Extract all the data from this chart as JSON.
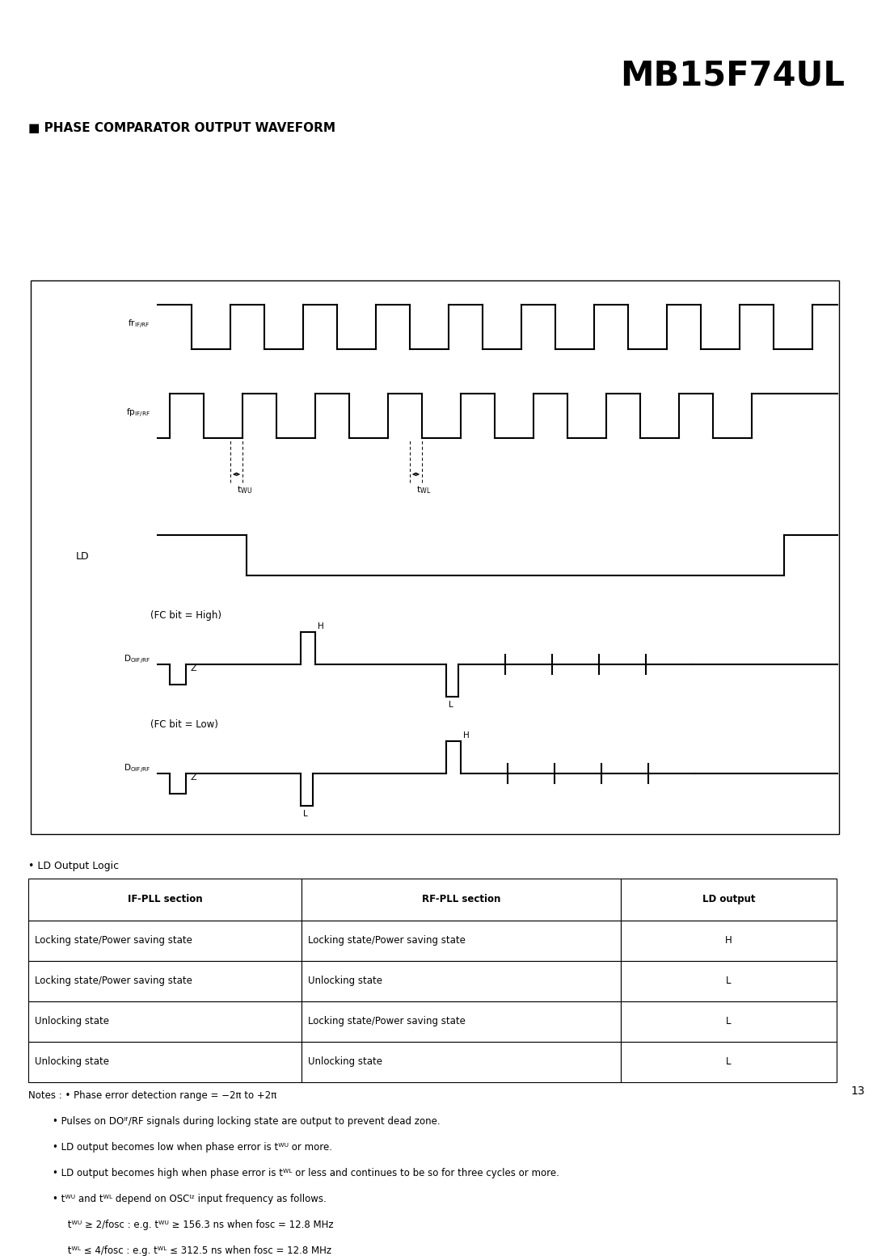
{
  "title": "MB15F74UL",
  "section_title": "■ PHASE COMPARATOR OUTPUT WAVEFORM",
  "green_color": "#25C466",
  "green_stripe": "#20B358",
  "bg_color": "#FFFFFF",
  "page_number": "13",
  "table_headers": [
    "IF-PLL section",
    "RF-PLL section",
    "LD output"
  ],
  "table_rows": [
    [
      "Locking state/Power saving state",
      "Locking state/Power saving state",
      "H"
    ],
    [
      "Locking state/Power saving state",
      "Unlocking state",
      "L"
    ],
    [
      "Unlocking state",
      "Locking state/Power saving state",
      "L"
    ],
    [
      "Unlocking state",
      "Unlocking state",
      "L"
    ]
  ],
  "note0": "Notes : • Phase error detection range = −2π to +2π",
  "note1": "        • Pulses on DOᴵᶠ/RF signals during locking state are output to prevent dead zone.",
  "note2": "        • LD output becomes low when phase error is tᵂᵁ or more.",
  "note3": "        • LD output becomes high when phase error is tᵂᴸ or less and continues to be so for three cycles or more.",
  "note4": "        • tᵂᵁ and tᵂᴸ depend on OSCᴵᶻ input frequency as follows.",
  "note5": "             tᵂᵁ ≥ 2/fosc : e.g. tᵂᵁ ≥ 156.3 ns when fosc = 12.8 MHz",
  "note6": "             tᵂᴸ ≤ 4/fosc : e.g. tᵂᴸ ≤ 312.5 ns when fosc = 12.8 MHz"
}
